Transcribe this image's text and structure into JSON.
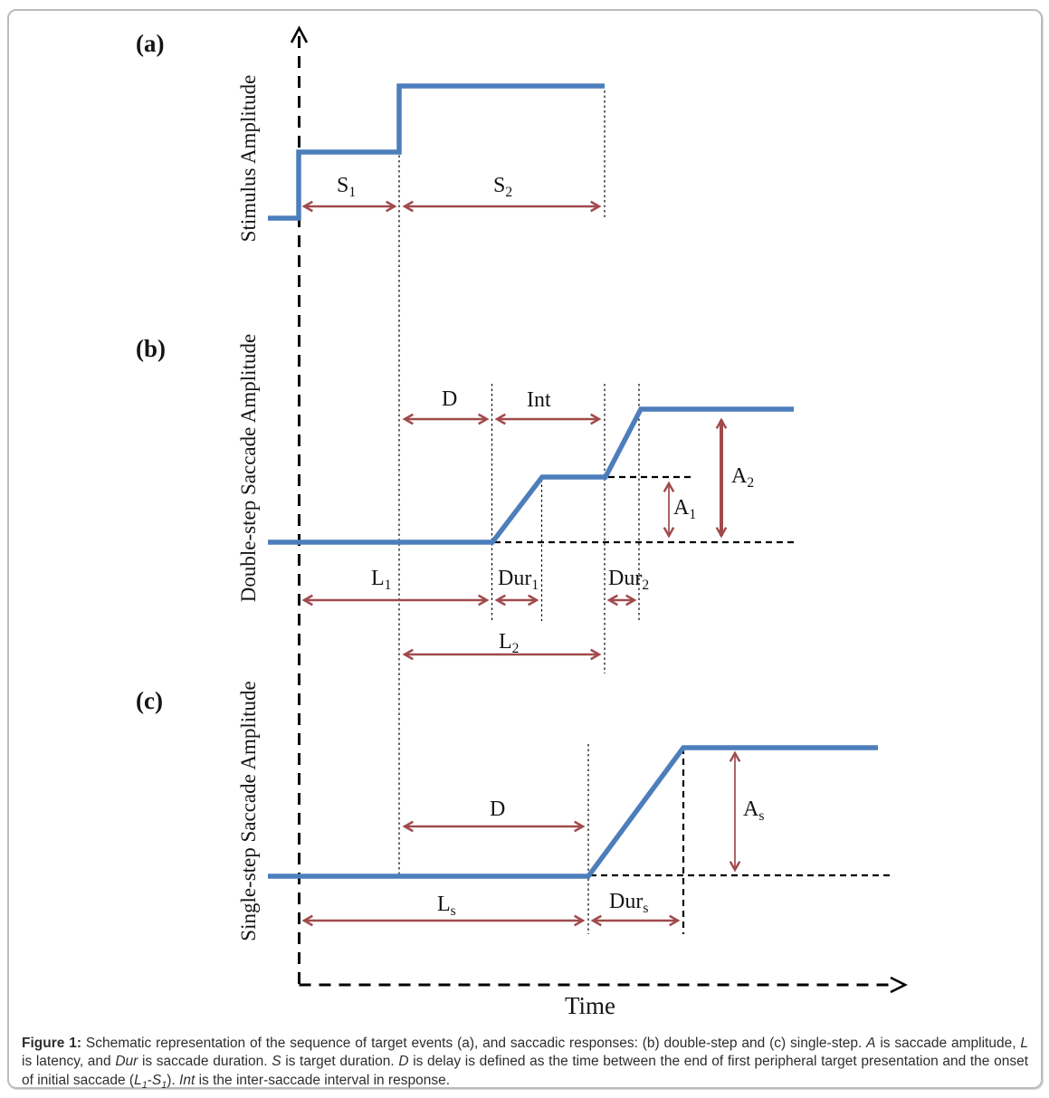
{
  "colors": {
    "trace": "#4d7ebc",
    "arrow": "#a04a4c",
    "axis": "#000000",
    "border": "#bcbcbc"
  },
  "panels": {
    "a": {
      "letter": "(a)",
      "axis_label": "Stimulus Amplitude",
      "labels": {
        "s1": {
          "base": "S",
          "sub": "1"
        },
        "s2": {
          "base": "S",
          "sub": "2"
        }
      }
    },
    "b": {
      "letter": "(b)",
      "axis_label": "Double-step Saccade Amplitude",
      "labels": {
        "d": {
          "base": "D",
          "sub": ""
        },
        "int": {
          "base": "Int",
          "sub": ""
        },
        "a1": {
          "base": "A",
          "sub": "1"
        },
        "a2": {
          "base": "A",
          "sub": "2"
        },
        "l1": {
          "base": "L",
          "sub": "1"
        },
        "dur1": {
          "base": "Dur",
          "sub": "1"
        },
        "dur2": {
          "base": "Dur",
          "sub": "2"
        },
        "l2": {
          "base": "L",
          "sub": "2"
        }
      }
    },
    "c": {
      "letter": "(c)",
      "axis_label": "Single-step Saccade Amplitude",
      "labels": {
        "d": {
          "base": "D",
          "sub": ""
        },
        "as": {
          "base": "A",
          "sub": "s"
        },
        "ls": {
          "base": "L",
          "sub": "s"
        },
        "durs": {
          "base": "Dur",
          "sub": "s"
        }
      }
    }
  },
  "time_axis": {
    "label": "Time"
  },
  "caption": {
    "segments": [
      {
        "t": "Figure 1: ",
        "b": true
      },
      {
        "t": "Schematic representation of the sequence of target events (a), and saccadic responses: (b) double-step and (c) single-step. "
      },
      {
        "t": "A",
        "i": true
      },
      {
        "t": " is saccade amplitude, "
      },
      {
        "t": "L",
        "i": true
      },
      {
        "t": " is latency, and "
      },
      {
        "t": "Dur",
        "i": true
      },
      {
        "t": " is saccade duration. "
      },
      {
        "t": "S",
        "i": true
      },
      {
        "t": " is target duration. "
      },
      {
        "t": "D",
        "i": true
      },
      {
        "t": " is delay is defined as the time between the end of first peripheral target presentation and the onset of initial saccade ("
      },
      {
        "t": "L",
        "i": true
      },
      {
        "t": "1",
        "i": true,
        "sub": true
      },
      {
        "t": "-"
      },
      {
        "t": "S",
        "i": true
      },
      {
        "t": "1",
        "i": true,
        "sub": true
      },
      {
        "t": "). "
      },
      {
        "t": "Int",
        "i": true
      },
      {
        "t": " is the inter-saccade interval in response."
      }
    ]
  }
}
